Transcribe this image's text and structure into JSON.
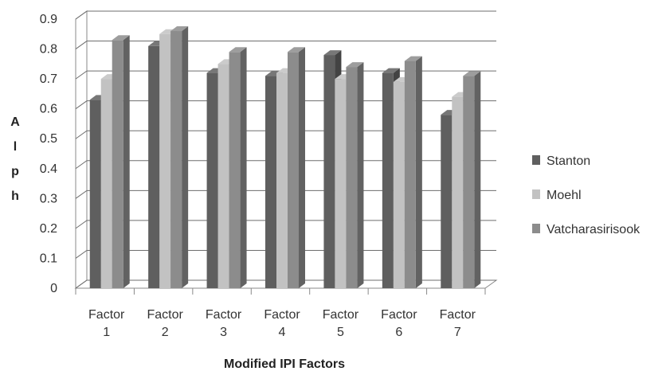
{
  "chart_data": {
    "type": "bar",
    "categories": [
      "Factor 1",
      "Factor 2",
      "Factor 3",
      "Factor 4",
      "Factor 5",
      "Factor 6",
      "Factor 7"
    ],
    "category_lines": [
      [
        "Factor",
        "1"
      ],
      [
        "Factor",
        "2"
      ],
      [
        "Factor",
        "3"
      ],
      [
        "Factor",
        "4"
      ],
      [
        "Factor",
        "5"
      ],
      [
        "Factor",
        "6"
      ],
      [
        "Factor",
        "7"
      ]
    ],
    "series": [
      {
        "name": "Stanton",
        "color": "#5f5f5f",
        "values": [
          0.63,
          0.81,
          0.72,
          0.71,
          0.78,
          0.72,
          0.58
        ]
      },
      {
        "name": "Moehl",
        "color": "#c2c2c2",
        "values": [
          0.7,
          0.85,
          0.75,
          0.72,
          0.7,
          0.69,
          0.64
        ]
      },
      {
        "name": "Vatcharasirisook",
        "color": "#8c8c8c",
        "values": [
          0.83,
          0.86,
          0.79,
          0.79,
          0.74,
          0.76,
          0.71
        ]
      }
    ],
    "xlabel": "Modified IPI Factors",
    "ylabel_letters": [
      "A",
      "l",
      "p",
      "h"
    ],
    "ylim": [
      0,
      0.9
    ],
    "yticks": [
      "0",
      "0.1",
      "0.2",
      "0.3",
      "0.4",
      "0.5",
      "0.6",
      "0.7",
      "0.8",
      "0.9"
    ],
    "grid": true,
    "style": "3d-clustered-column",
    "legend_position": "right"
  }
}
